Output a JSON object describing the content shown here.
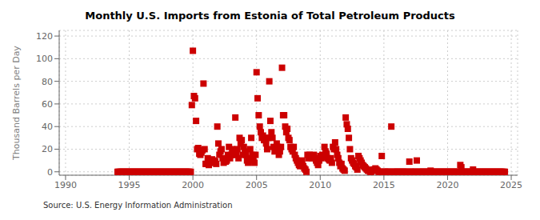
{
  "chart_data": {
    "type": "scatter",
    "title": "Monthly U.S. Imports from Estonia of Total Petroleum Products",
    "ylabel": "Thousand Barrels per Day",
    "source": "Source: U.S. Energy Information Administration",
    "xlim": [
      1989.5,
      2025.5
    ],
    "xticks": [
      1990,
      1995,
      2000,
      2005,
      2010,
      2015,
      2020,
      2025
    ],
    "ylim": [
      -3,
      125
    ],
    "yticks": [
      0,
      20,
      40,
      60,
      80,
      100,
      120
    ],
    "grid": true,
    "color": "#cc0000",
    "marker": "square",
    "x": [
      1994.083,
      1994.167,
      1994.25,
      1994.333,
      1994.417,
      1994.5,
      1994.583,
      1994.667,
      1994.75,
      1994.833,
      1994.917,
      1995.0,
      1995.083,
      1995.167,
      1995.25,
      1995.333,
      1995.417,
      1995.5,
      1995.583,
      1995.667,
      1995.75,
      1995.833,
      1995.917,
      1996.0,
      1996.083,
      1996.167,
      1996.25,
      1996.333,
      1996.417,
      1996.5,
      1996.583,
      1996.667,
      1996.75,
      1996.833,
      1996.917,
      1997.0,
      1997.083,
      1997.167,
      1997.25,
      1997.333,
      1997.417,
      1997.5,
      1997.583,
      1997.667,
      1997.75,
      1997.833,
      1997.917,
      1998.0,
      1998.083,
      1998.167,
      1998.25,
      1998.333,
      1998.417,
      1998.5,
      1998.583,
      1998.667,
      1998.75,
      1998.833,
      1998.917,
      1999.0,
      1999.083,
      1999.167,
      1999.25,
      1999.333,
      1999.417,
      1999.5,
      1999.583,
      1999.667,
      1999.75,
      1999.833,
      1999.917,
      2000.0,
      2000.083,
      2000.167,
      2000.25,
      2000.333,
      2000.417,
      2000.5,
      2000.583,
      2000.667,
      2000.75,
      2000.833,
      2000.917,
      2001.0,
      2001.083,
      2001.167,
      2001.25,
      2001.333,
      2001.417,
      2001.5,
      2001.583,
      2001.667,
      2001.75,
      2001.833,
      2001.917,
      2002.0,
      2002.083,
      2002.167,
      2002.25,
      2002.333,
      2002.417,
      2002.5,
      2002.583,
      2002.667,
      2002.75,
      2002.833,
      2002.917,
      2003.0,
      2003.083,
      2003.167,
      2003.25,
      2003.333,
      2003.417,
      2003.5,
      2003.583,
      2003.667,
      2003.75,
      2003.833,
      2003.917,
      2004.0,
      2004.083,
      2004.167,
      2004.25,
      2004.333,
      2004.417,
      2004.5,
      2004.583,
      2004.667,
      2004.75,
      2004.833,
      2004.917,
      2005.0,
      2005.083,
      2005.167,
      2005.25,
      2005.333,
      2005.417,
      2005.5,
      2005.583,
      2005.667,
      2005.75,
      2005.833,
      2005.917,
      2006.0,
      2006.083,
      2006.167,
      2006.25,
      2006.333,
      2006.417,
      2006.5,
      2006.583,
      2006.667,
      2006.75,
      2006.833,
      2006.917,
      2007.0,
      2007.083,
      2007.167,
      2007.25,
      2007.333,
      2007.417,
      2007.5,
      2007.583,
      2007.667,
      2007.75,
      2007.833,
      2007.917,
      2008.0,
      2008.083,
      2008.167,
      2008.25,
      2008.333,
      2008.417,
      2008.5,
      2008.583,
      2008.667,
      2008.75,
      2008.833,
      2008.917,
      2009.0,
      2009.083,
      2009.167,
      2009.25,
      2009.333,
      2009.417,
      2009.5,
      2009.583,
      2009.667,
      2009.75,
      2009.833,
      2009.917,
      2010.0,
      2010.083,
      2010.167,
      2010.25,
      2010.333,
      2010.417,
      2010.5,
      2010.583,
      2010.667,
      2010.75,
      2010.833,
      2010.917,
      2011.0,
      2011.083,
      2011.167,
      2011.25,
      2011.333,
      2011.417,
      2011.5,
      2011.583,
      2011.667,
      2011.75,
      2011.833,
      2011.917,
      2012.0,
      2012.083,
      2012.167,
      2012.25,
      2012.333,
      2012.417,
      2012.5,
      2012.583,
      2012.667,
      2012.75,
      2012.833,
      2012.917,
      2013.0,
      2013.083,
      2013.167,
      2013.25,
      2013.333,
      2013.417,
      2013.5,
      2013.583,
      2013.667,
      2013.75,
      2013.833,
      2013.917,
      2014.0,
      2014.083,
      2014.167,
      2014.25,
      2014.333,
      2014.417,
      2014.5,
      2014.583,
      2014.667,
      2014.75,
      2014.833,
      2014.917,
      2015.0,
      2015.083,
      2015.167,
      2015.25,
      2015.333,
      2015.417,
      2015.5,
      2015.583,
      2015.667,
      2015.75,
      2015.833,
      2015.917,
      2016.0,
      2016.083,
      2016.167,
      2016.25,
      2016.333,
      2016.417,
      2016.5,
      2016.583,
      2016.667,
      2016.75,
      2016.833,
      2016.917,
      2017.0,
      2017.083,
      2017.167,
      2017.25,
      2017.333,
      2017.417,
      2017.5,
      2017.583,
      2017.667,
      2017.75,
      2017.833,
      2017.917,
      2018.0,
      2018.083,
      2018.167,
      2018.25,
      2018.333,
      2018.417,
      2018.5,
      2018.583,
      2018.667,
      2018.75,
      2018.833,
      2018.917,
      2019.0,
      2019.083,
      2019.167,
      2019.25,
      2019.333,
      2019.417,
      2019.5,
      2019.583,
      2019.667,
      2019.75,
      2019.833,
      2019.917,
      2020.0,
      2020.083,
      2020.167,
      2020.25,
      2020.333,
      2020.417,
      2020.5,
      2020.583,
      2020.667,
      2020.75,
      2020.833,
      2020.917,
      2021.0,
      2021.083,
      2021.167,
      2021.25,
      2021.333,
      2021.417,
      2021.5,
      2021.583,
      2021.667,
      2021.75,
      2021.833,
      2021.917,
      2022.0,
      2022.083,
      2022.167,
      2022.25,
      2022.333,
      2022.417,
      2022.5,
      2022.583,
      2022.667,
      2022.75,
      2022.833,
      2022.917,
      2023.0,
      2023.083,
      2023.167,
      2023.25,
      2023.333,
      2023.417,
      2023.5,
      2023.583,
      2023.667,
      2023.75,
      2023.833,
      2023.917,
      2024.0,
      2024.083,
      2024.167,
      2024.25,
      2024.333,
      2024.417,
      2024.5
    ],
    "values": [
      0,
      0,
      0,
      0,
      0,
      0,
      0,
      0,
      0,
      0,
      0,
      0,
      0,
      0,
      0,
      0,
      0,
      0,
      0,
      0,
      0,
      0,
      0,
      0,
      0,
      0,
      0,
      0,
      0,
      0,
      0,
      0,
      0,
      0,
      0,
      0,
      0,
      0,
      0,
      0,
      0,
      0,
      0,
      0,
      0,
      0,
      0,
      0,
      0,
      0,
      0,
      0,
      0,
      0,
      0,
      0,
      0,
      0,
      0,
      0,
      0,
      0,
      0,
      0,
      0,
      0,
      0,
      0,
      0,
      0,
      59,
      107,
      67,
      65,
      45,
      20,
      21,
      16,
      15,
      17,
      19,
      78,
      20,
      7,
      7,
      12,
      6,
      8,
      10,
      11,
      8,
      10,
      9,
      7,
      40,
      25,
      15,
      18,
      20,
      12,
      8,
      10,
      9,
      10,
      15,
      22,
      12,
      15,
      20,
      18,
      15,
      48,
      15,
      20,
      12,
      30,
      25,
      28,
      15,
      22,
      18,
      15,
      10,
      8,
      12,
      20,
      30,
      15,
      10,
      8,
      15,
      88,
      65,
      50,
      40,
      35,
      30,
      32,
      28,
      30,
      25,
      20,
      30,
      80,
      45,
      35,
      30,
      22,
      18,
      20,
      25,
      22,
      15,
      18,
      22,
      92,
      50,
      50,
      40,
      35,
      38,
      30,
      28,
      22,
      20,
      18,
      22,
      15,
      12,
      10,
      8,
      6,
      5,
      8,
      10,
      5,
      3,
      2,
      0,
      15,
      12,
      15,
      14,
      12,
      13,
      15,
      12,
      10,
      8,
      6,
      10,
      14,
      12,
      15,
      13,
      22,
      18,
      16,
      12,
      11,
      10,
      12,
      8,
      22,
      20,
      26,
      20,
      15,
      12,
      8,
      5,
      7,
      3,
      2,
      1,
      48,
      42,
      38,
      30,
      20,
      12,
      10,
      8,
      7,
      5,
      4,
      2,
      14,
      12,
      10,
      8,
      6,
      5,
      4,
      3,
      2,
      1,
      1,
      0,
      0,
      1,
      2,
      2,
      3,
      2,
      1,
      0,
      0,
      0,
      14,
      0,
      0,
      0,
      0,
      0,
      0,
      0,
      0,
      40,
      0,
      0,
      0,
      0,
      0,
      0,
      0,
      0,
      0,
      0,
      0,
      0,
      0,
      0,
      0,
      0,
      9,
      0,
      0,
      0,
      0,
      0,
      0,
      10,
      0,
      0,
      0,
      0,
      0,
      0,
      0,
      0,
      0,
      0,
      0,
      0,
      1,
      0,
      0,
      0,
      0,
      0,
      0,
      0,
      0,
      0,
      0,
      0,
      0,
      0,
      0,
      0,
      0,
      0,
      0,
      0,
      0,
      0,
      0,
      0,
      0,
      0,
      0,
      0,
      6,
      4,
      0,
      0,
      0,
      0,
      0,
      0,
      0,
      0,
      0,
      0,
      2,
      0,
      0,
      0,
      0,
      0,
      0,
      0,
      0,
      0,
      0,
      0,
      0,
      0,
      0,
      0,
      0,
      0,
      0,
      0,
      0,
      0,
      0,
      0,
      0,
      0,
      0,
      0,
      0,
      0,
      0
    ]
  }
}
